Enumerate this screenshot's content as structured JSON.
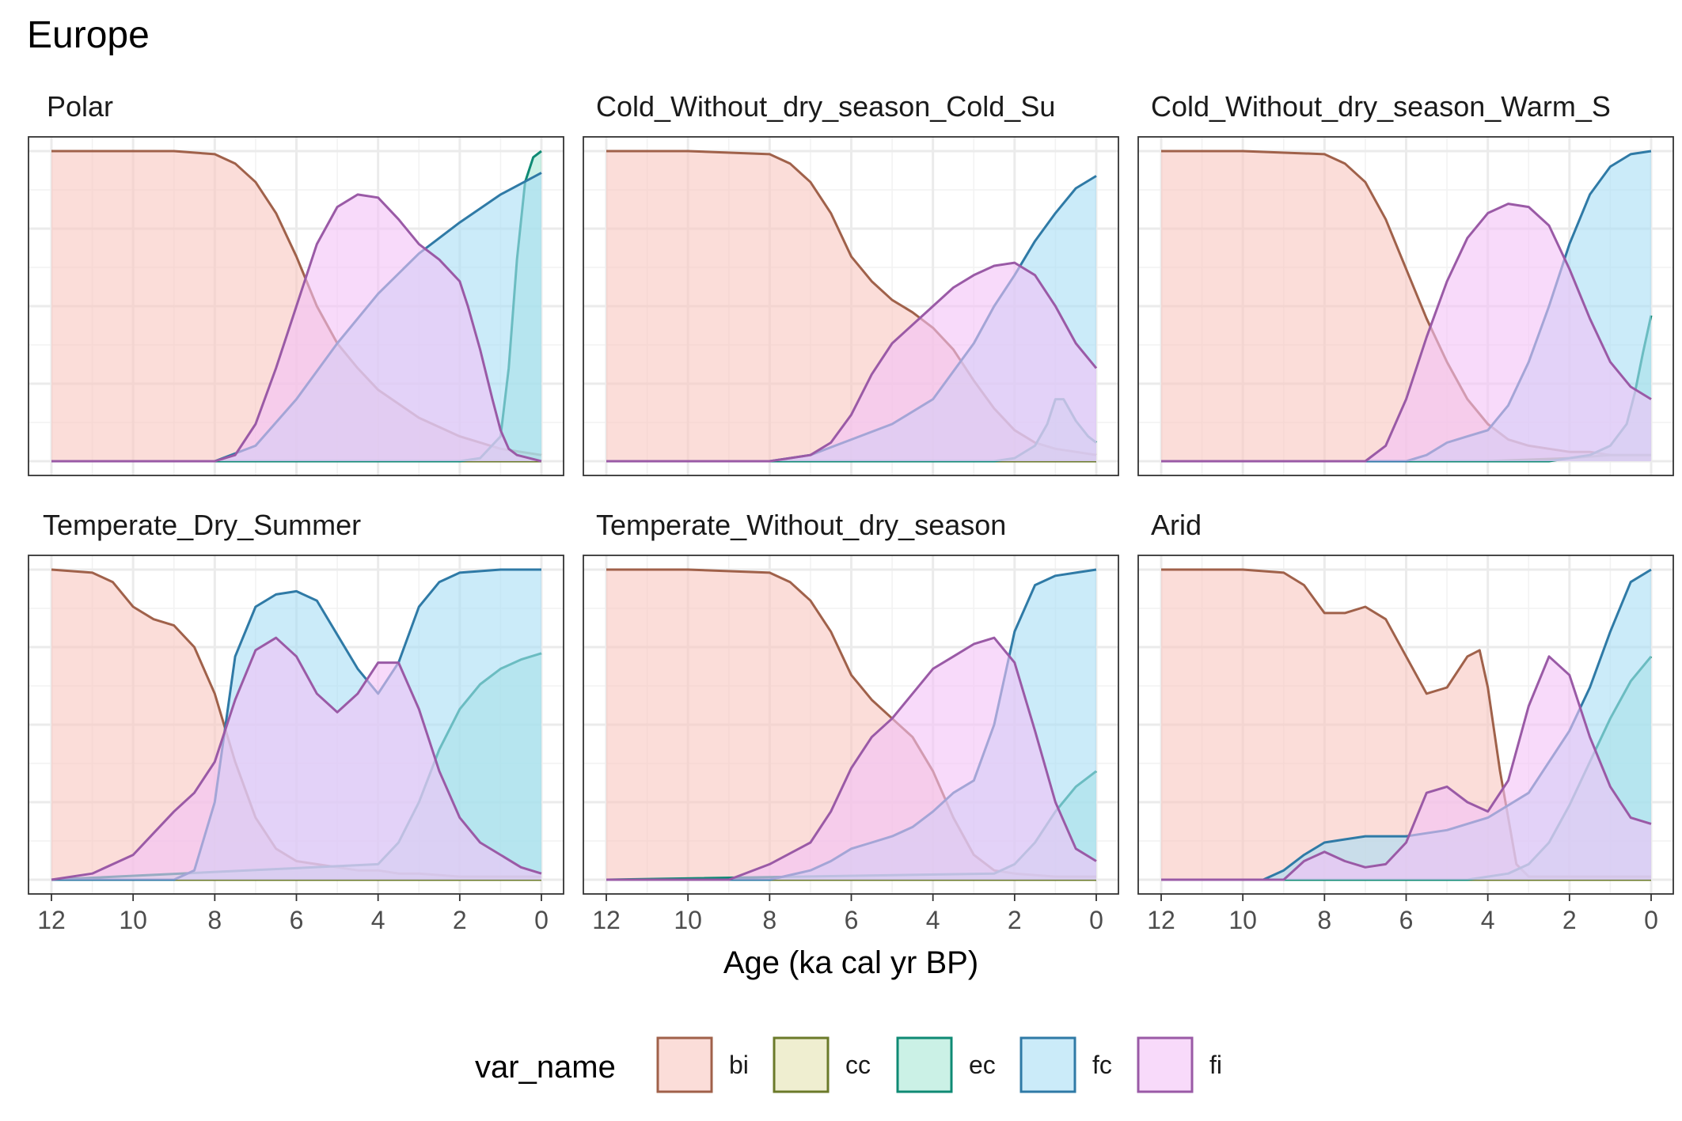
{
  "colors": {
    "bi": "#a0614a",
    "cc": "#6b7a2a",
    "ec": "#0f8a74",
    "fc": "#2f7aa6",
    "fi": "#9a5aa6"
  },
  "fills": {
    "bi": "#f8c6c0",
    "cc": "#e5e3b0",
    "ec": "#a8e8d6",
    "fc": "#a8ddf5",
    "fi": "#f4c2f6"
  },
  "chart_data": {
    "type": "area",
    "title": "Europe",
    "xlabel": "Age (ka cal yr BP)",
    "ylabel": "",
    "xlim": [
      12,
      0
    ],
    "ylim": [
      0,
      1
    ],
    "x_ticks": [
      12,
      10,
      8,
      6,
      4,
      2,
      0
    ],
    "x_tick_labels": [
      "12",
      "10",
      "8",
      "6",
      "4",
      "2",
      "0"
    ],
    "grid": true,
    "legend": {
      "title": "var_name",
      "position": "bottom",
      "entries": [
        "bi",
        "cc",
        "ec",
        "fc",
        "fi"
      ]
    },
    "panels": [
      {
        "name": "Polar",
        "series": [
          {
            "name": "bi",
            "x": [
              12,
              10,
              9,
              8,
              7.5,
              7,
              6.5,
              6,
              5.5,
              5,
              4.5,
              4,
              3,
              2,
              1,
              0
            ],
            "y": [
              1,
              1,
              1,
              0.99,
              0.96,
              0.9,
              0.8,
              0.66,
              0.5,
              0.38,
              0.3,
              0.23,
              0.14,
              0.08,
              0.04,
              0.02
            ]
          },
          {
            "name": "cc",
            "x": [
              12,
              8,
              4,
              2,
              0
            ],
            "y": [
              0,
              0,
              0,
              0,
              0
            ]
          },
          {
            "name": "ec",
            "x": [
              12,
              4,
              2,
              1.5,
              1,
              0.8,
              0.6,
              0.4,
              0.2,
              0
            ],
            "y": [
              0,
              0,
              0,
              0.01,
              0.08,
              0.3,
              0.65,
              0.9,
              0.98,
              1
            ]
          },
          {
            "name": "fc",
            "x": [
              12,
              9,
              8,
              7,
              6,
              5,
              4,
              3,
              2,
              1,
              0
            ],
            "y": [
              0,
              0,
              0,
              0.05,
              0.2,
              0.38,
              0.54,
              0.67,
              0.77,
              0.86,
              0.93
            ]
          },
          {
            "name": "fi",
            "x": [
              12,
              8,
              7.5,
              7,
              6.5,
              6,
              5.5,
              5,
              4.5,
              4,
              3.5,
              3,
              2.5,
              2,
              1.8,
              1.5,
              1.2,
              1,
              0.8,
              0.6,
              0.3,
              0
            ],
            "y": [
              0,
              0,
              0.02,
              0.12,
              0.3,
              0.5,
              0.7,
              0.82,
              0.86,
              0.85,
              0.78,
              0.7,
              0.65,
              0.58,
              0.5,
              0.36,
              0.2,
              0.1,
              0.04,
              0.02,
              0.01,
              0
            ]
          }
        ]
      },
      {
        "name": "Cold_Without_dry_season_Cold_Su",
        "series": [
          {
            "name": "bi",
            "x": [
              12,
              10,
              8,
              7.5,
              7,
              6.5,
              6,
              5.5,
              5,
              4.5,
              4,
              3.5,
              3,
              2.5,
              2,
              1.5,
              1,
              0.5,
              0
            ],
            "y": [
              1,
              1,
              0.99,
              0.96,
              0.9,
              0.8,
              0.66,
              0.58,
              0.52,
              0.48,
              0.43,
              0.36,
              0.26,
              0.17,
              0.1,
              0.06,
              0.04,
              0.03,
              0.02
            ]
          },
          {
            "name": "cc",
            "x": [
              12,
              6,
              0
            ],
            "y": [
              0,
              0,
              0
            ]
          },
          {
            "name": "ec",
            "x": [
              12,
              2.5,
              2,
              1.5,
              1.2,
              1,
              0.8,
              0.5,
              0.2,
              0
            ],
            "y": [
              0,
              0,
              0.01,
              0.05,
              0.12,
              0.2,
              0.2,
              0.13,
              0.08,
              0.06
            ]
          },
          {
            "name": "fc",
            "x": [
              12,
              8,
              7,
              6,
              5,
              4,
              3,
              2.5,
              2,
              1.5,
              1,
              0.5,
              0
            ],
            "y": [
              0,
              0,
              0.02,
              0.07,
              0.12,
              0.2,
              0.38,
              0.5,
              0.6,
              0.71,
              0.8,
              0.88,
              0.92
            ]
          },
          {
            "name": "fi",
            "x": [
              12,
              8,
              7,
              6.5,
              6,
              5.5,
              5,
              4.5,
              4,
              3.5,
              3,
              2.5,
              2,
              1.5,
              1,
              0.5,
              0
            ],
            "y": [
              0,
              0,
              0.02,
              0.06,
              0.15,
              0.28,
              0.38,
              0.44,
              0.5,
              0.56,
              0.6,
              0.63,
              0.64,
              0.6,
              0.5,
              0.38,
              0.3
            ]
          }
        ]
      },
      {
        "name": "Cold_Without_dry_season_Warm_S",
        "series": [
          {
            "name": "bi",
            "x": [
              12,
              10,
              8,
              7.5,
              7,
              6.5,
              6,
              5.5,
              5,
              4.5,
              4,
              3.5,
              3,
              2.5,
              2,
              1.5,
              1,
              0
            ],
            "y": [
              1,
              1,
              0.99,
              0.96,
              0.9,
              0.78,
              0.62,
              0.46,
              0.32,
              0.2,
              0.12,
              0.07,
              0.05,
              0.04,
              0.03,
              0.03,
              0.02,
              0.02
            ]
          },
          {
            "name": "cc",
            "x": [
              12,
              4,
              2,
              1,
              0.5,
              0
            ],
            "y": [
              0,
              0,
              0.01,
              0.02,
              0.02,
              0.02
            ]
          },
          {
            "name": "ec",
            "x": [
              12,
              2.5,
              2,
              1.5,
              1,
              0.6,
              0.4,
              0.2,
              0
            ],
            "y": [
              0,
              0,
              0.01,
              0.02,
              0.05,
              0.12,
              0.22,
              0.35,
              0.47
            ]
          },
          {
            "name": "fc",
            "x": [
              12,
              6,
              5.5,
              5,
              4.5,
              4,
              3.5,
              3,
              2.5,
              2,
              1.5,
              1,
              0.5,
              0
            ],
            "y": [
              0,
              0,
              0.02,
              0.06,
              0.08,
              0.1,
              0.18,
              0.32,
              0.5,
              0.7,
              0.86,
              0.95,
              0.99,
              1
            ]
          },
          {
            "name": "fi",
            "x": [
              12,
              7,
              6.5,
              6,
              5.5,
              5,
              4.5,
              4,
              3.5,
              3,
              2.5,
              2,
              1.5,
              1,
              0.5,
              0
            ],
            "y": [
              0,
              0,
              0.05,
              0.2,
              0.4,
              0.58,
              0.72,
              0.8,
              0.83,
              0.82,
              0.76,
              0.62,
              0.46,
              0.32,
              0.24,
              0.2
            ]
          }
        ]
      },
      {
        "name": "Temperate_Dry_Summer",
        "series": [
          {
            "name": "bi",
            "x": [
              12,
              11,
              10.5,
              10,
              9.5,
              9,
              8.5,
              8,
              7.5,
              7,
              6.5,
              6,
              5.5,
              5,
              4.5,
              4,
              3.5,
              3,
              2,
              1,
              0
            ],
            "y": [
              1,
              0.99,
              0.96,
              0.88,
              0.84,
              0.82,
              0.75,
              0.6,
              0.38,
              0.2,
              0.1,
              0.06,
              0.05,
              0.04,
              0.03,
              0.03,
              0.02,
              0.02,
              0.01,
              0.01,
              0.01
            ]
          },
          {
            "name": "cc",
            "x": [
              12,
              6,
              0
            ],
            "y": [
              0,
              0,
              0
            ]
          },
          {
            "name": "ec",
            "x": [
              12,
              4,
              3.5,
              3,
              2.5,
              2,
              1.5,
              1,
              0.5,
              0
            ],
            "y": [
              0,
              0.05,
              0.12,
              0.25,
              0.42,
              0.55,
              0.63,
              0.68,
              0.71,
              0.73
            ]
          },
          {
            "name": "fc",
            "x": [
              12,
              9,
              8.5,
              8,
              7.5,
              7,
              6.5,
              6,
              5.5,
              5,
              4.5,
              4,
              3.5,
              3,
              2.5,
              2,
              1,
              0
            ],
            "y": [
              0,
              0,
              0.03,
              0.25,
              0.72,
              0.88,
              0.92,
              0.93,
              0.9,
              0.79,
              0.68,
              0.6,
              0.7,
              0.88,
              0.96,
              0.99,
              1,
              1
            ]
          },
          {
            "name": "fi",
            "x": [
              12,
              11,
              10,
              9.5,
              9,
              8.5,
              8,
              7.5,
              7,
              6.5,
              6,
              5.5,
              5,
              4.5,
              4,
              3.5,
              3,
              2.5,
              2,
              1.5,
              1,
              0.5,
              0
            ],
            "y": [
              0,
              0.02,
              0.08,
              0.15,
              0.22,
              0.28,
              0.38,
              0.58,
              0.74,
              0.78,
              0.72,
              0.6,
              0.54,
              0.6,
              0.7,
              0.7,
              0.55,
              0.35,
              0.2,
              0.12,
              0.08,
              0.04,
              0.02
            ]
          }
        ]
      },
      {
        "name": "Temperate_Without_dry_season",
        "series": [
          {
            "name": "bi",
            "x": [
              12,
              10,
              8,
              7.5,
              7,
              6.5,
              6,
              5.5,
              5,
              4.5,
              4,
              3.5,
              3,
              2.5,
              2,
              1,
              0
            ],
            "y": [
              1,
              1,
              0.99,
              0.96,
              0.9,
              0.8,
              0.66,
              0.58,
              0.52,
              0.46,
              0.35,
              0.2,
              0.08,
              0.03,
              0.02,
              0.01,
              0.01
            ]
          },
          {
            "name": "cc",
            "x": [
              12,
              6,
              0
            ],
            "y": [
              0,
              0,
              0
            ]
          },
          {
            "name": "ec",
            "x": [
              12,
              2.5,
              2,
              1.5,
              1,
              0.5,
              0
            ],
            "y": [
              0,
              0.02,
              0.05,
              0.12,
              0.22,
              0.3,
              0.35
            ]
          },
          {
            "name": "fc",
            "x": [
              12,
              8,
              7,
              6.5,
              6,
              5.5,
              5,
              4.5,
              4,
              3.5,
              3,
              2.5,
              2,
              1.5,
              1,
              0.5,
              0
            ],
            "y": [
              0,
              0,
              0.03,
              0.06,
              0.1,
              0.12,
              0.14,
              0.17,
              0.22,
              0.28,
              0.32,
              0.5,
              0.8,
              0.95,
              0.98,
              0.99,
              1
            ]
          },
          {
            "name": "fi",
            "x": [
              12,
              9,
              8,
              7,
              6.5,
              6,
              5.5,
              5,
              4.5,
              4,
              3.5,
              3,
              2.5,
              2,
              1.5,
              1,
              0.5,
              0
            ],
            "y": [
              0,
              0,
              0.05,
              0.12,
              0.22,
              0.36,
              0.46,
              0.52,
              0.6,
              0.68,
              0.72,
              0.76,
              0.78,
              0.7,
              0.48,
              0.25,
              0.1,
              0.06
            ]
          }
        ]
      },
      {
        "name": "Arid",
        "series": [
          {
            "name": "bi",
            "x": [
              12,
              10,
              9,
              8.5,
              8,
              7.5,
              7,
              6.5,
              6,
              5.5,
              5,
              4.5,
              4.2,
              4,
              3.7,
              3.3,
              3,
              2.5,
              2,
              1,
              0
            ],
            "y": [
              1,
              1,
              0.99,
              0.95,
              0.86,
              0.86,
              0.88,
              0.84,
              0.72,
              0.6,
              0.62,
              0.72,
              0.74,
              0.62,
              0.35,
              0.05,
              0.01,
              0.01,
              0.01,
              0.01,
              0.01
            ]
          },
          {
            "name": "cc",
            "x": [
              12,
              6,
              0
            ],
            "y": [
              0,
              0,
              0
            ]
          },
          {
            "name": "ec",
            "x": [
              12,
              4.5,
              4,
              3.5,
              3,
              2.5,
              2,
              1.5,
              1,
              0.5,
              0
            ],
            "y": [
              0,
              0,
              0.01,
              0.02,
              0.05,
              0.12,
              0.24,
              0.38,
              0.52,
              0.64,
              0.72
            ]
          },
          {
            "name": "fc",
            "x": [
              12,
              9.5,
              9,
              8.5,
              8,
              7.5,
              7,
              6,
              5,
              4,
              3,
              2,
              1.5,
              1,
              0.5,
              0
            ],
            "y": [
              0,
              0,
              0.03,
              0.08,
              0.12,
              0.13,
              0.14,
              0.14,
              0.16,
              0.2,
              0.28,
              0.48,
              0.62,
              0.8,
              0.96,
              1
            ]
          },
          {
            "name": "fi",
            "x": [
              12,
              9,
              8.5,
              8,
              7.5,
              7,
              6.5,
              6,
              5.5,
              5,
              4.5,
              4,
              3.5,
              3,
              2.5,
              2,
              1.5,
              1,
              0.5,
              0
            ],
            "y": [
              0,
              0,
              0.06,
              0.09,
              0.06,
              0.04,
              0.05,
              0.12,
              0.28,
              0.3,
              0.25,
              0.22,
              0.32,
              0.56,
              0.72,
              0.66,
              0.46,
              0.3,
              0.2,
              0.18
            ]
          }
        ]
      }
    ]
  }
}
